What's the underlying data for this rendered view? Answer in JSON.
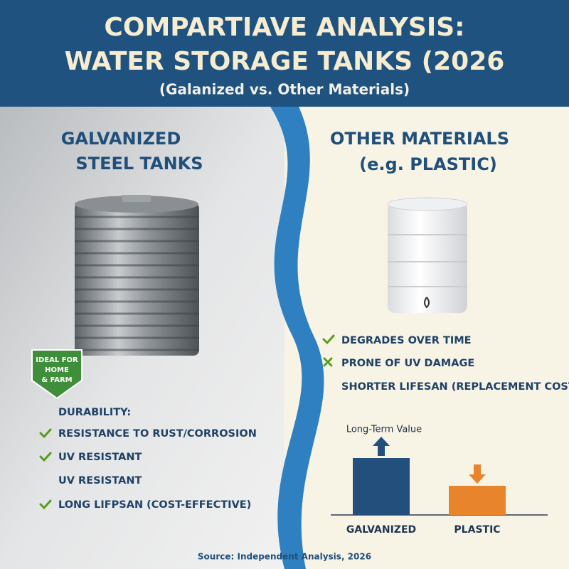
{
  "header": {
    "title_lines": [
      "COMPARTIAVE ANALYSIS:",
      "WATER STORAGE TANKS (2026"
    ],
    "subtitle": "(Galanized vs. Other Materials)"
  },
  "left": {
    "heading_lines": [
      "GALVANIZED",
      "STEEL TANKS"
    ],
    "badge_lines": [
      "IDEAL FOR",
      "HOME",
      "& FARM"
    ],
    "list_title": "DURABILITY:",
    "items": [
      "RESISTANCE TO RUST/CORROSION",
      "UV RESISTANT",
      "UV RESISTANT",
      "LONG LIFPSAN (COST-EFFECTIVE)"
    ]
  },
  "right": {
    "heading_lines": [
      "OTHER MATERIALS",
      "(e.g. PLASTIC)"
    ],
    "items": [
      "DEGRADES OVER TIME",
      "PRONE OF UV DAMAGE",
      "SHORTER LIFESAN (REPLACEMENT COSTS)"
    ]
  },
  "chart_data": {
    "type": "bar",
    "title": "Long-Term Value",
    "categories": [
      "GALVANIZED",
      "PLASTIC"
    ],
    "values": [
      80,
      41
    ],
    "colors": [
      "#234f7d",
      "#e8842c"
    ]
  },
  "footer": {
    "source": "Source: Independent Analysis, 2026"
  }
}
